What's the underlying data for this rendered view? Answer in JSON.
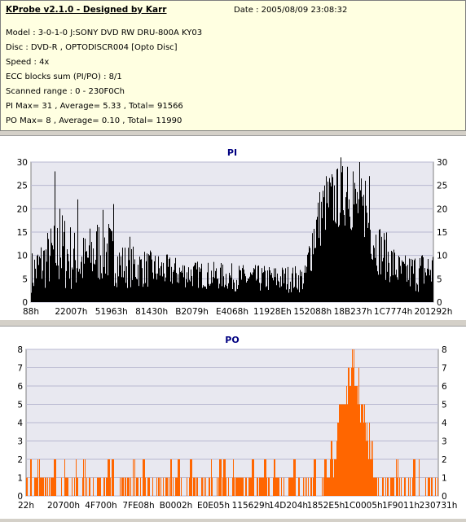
{
  "header": {
    "title": "KProbe v2.1.0 - Designed by Karr",
    "date": "Date : 2005/08/09 23:08:32",
    "lines": [
      "Model : 3-0-1-0 J:SONY    DVD RW DRU-800A  KY03",
      "Disc : DVD-R , OPTODISCR004 [Opto Disc]",
      "Speed : 4x",
      "ECC blocks sum (PI/PO) : 8/1",
      "Scanned range : 0 - 230F0Ch",
      "PI Max= 31 , Average= 5.33 , Total= 91566",
      "PO Max= 8 , Average= 0.10 , Total= 11990"
    ]
  },
  "colors": {
    "pi": "#000000",
    "po": "#ff6600",
    "plot_bg": "#e8e8f0",
    "title": "#000080"
  },
  "chart_data": [
    {
      "type": "bar",
      "title": "PI",
      "ylim": [
        0,
        30
      ],
      "yticks": [
        0,
        5,
        10,
        15,
        20,
        25,
        30
      ],
      "xticks": [
        "88h",
        "22007h",
        "51963h",
        "81430h",
        "B2079h",
        "E4068h",
        "11928Eh",
        "152088h",
        "18B237h",
        "1C7774h",
        "201292h"
      ],
      "profile": [
        {
          "x": 0.0,
          "base": 6,
          "spread": 5
        },
        {
          "x": 0.05,
          "base": 10,
          "spread": 7
        },
        {
          "x": 0.08,
          "base": 11,
          "spread": 9
        },
        {
          "x": 0.12,
          "base": 8,
          "spread": 6
        },
        {
          "x": 0.18,
          "base": 12,
          "spread": 8
        },
        {
          "x": 0.22,
          "base": 8,
          "spread": 5
        },
        {
          "x": 0.3,
          "base": 7,
          "spread": 4
        },
        {
          "x": 0.4,
          "base": 6,
          "spread": 3
        },
        {
          "x": 0.55,
          "base": 5,
          "spread": 3
        },
        {
          "x": 0.68,
          "base": 5,
          "spread": 3
        },
        {
          "x": 0.7,
          "base": 14,
          "spread": 7
        },
        {
          "x": 0.73,
          "base": 21,
          "spread": 7
        },
        {
          "x": 0.78,
          "base": 23,
          "spread": 7
        },
        {
          "x": 0.82,
          "base": 20,
          "spread": 7
        },
        {
          "x": 0.86,
          "base": 12,
          "spread": 6
        },
        {
          "x": 0.92,
          "base": 6,
          "spread": 4
        },
        {
          "x": 1.0,
          "base": 7,
          "spread": 5
        }
      ],
      "peaks": [
        {
          "x": 0.058,
          "y": 28
        },
        {
          "x": 0.07,
          "y": 20
        },
        {
          "x": 0.115,
          "y": 22
        },
        {
          "x": 0.205,
          "y": 21
        },
        {
          "x": 0.245,
          "y": 14
        },
        {
          "x": 0.77,
          "y": 31
        },
        {
          "x": 0.785,
          "y": 29
        },
        {
          "x": 0.8,
          "y": 28
        },
        {
          "x": 0.815,
          "y": 30
        },
        {
          "x": 0.83,
          "y": 26
        },
        {
          "x": 0.84,
          "y": 27
        }
      ]
    },
    {
      "type": "bar",
      "title": "PO",
      "ylim": [
        0,
        8
      ],
      "yticks": [
        0,
        1,
        2,
        3,
        4,
        5,
        6,
        7,
        8
      ],
      "xticks": [
        "22h",
        "20700h",
        "4F700h",
        "7FE08h",
        "B0002h",
        "E0E05h",
        "115629h",
        "14D204h",
        "1852E5h",
        "1C0005h",
        "1F9011h",
        "230731h"
      ],
      "hump": {
        "start": 0.73,
        "peak": 0.79,
        "end": 0.85,
        "max": 8
      },
      "background_level": 1,
      "sparse_twos": [
        0.01,
        0.03,
        0.07,
        0.095,
        0.12,
        0.14,
        0.2,
        0.21,
        0.26,
        0.285,
        0.35,
        0.37,
        0.4,
        0.45,
        0.47,
        0.48,
        0.5,
        0.55,
        0.58,
        0.6,
        0.65,
        0.7,
        0.725,
        0.9,
        0.94,
        0.95
      ]
    }
  ]
}
